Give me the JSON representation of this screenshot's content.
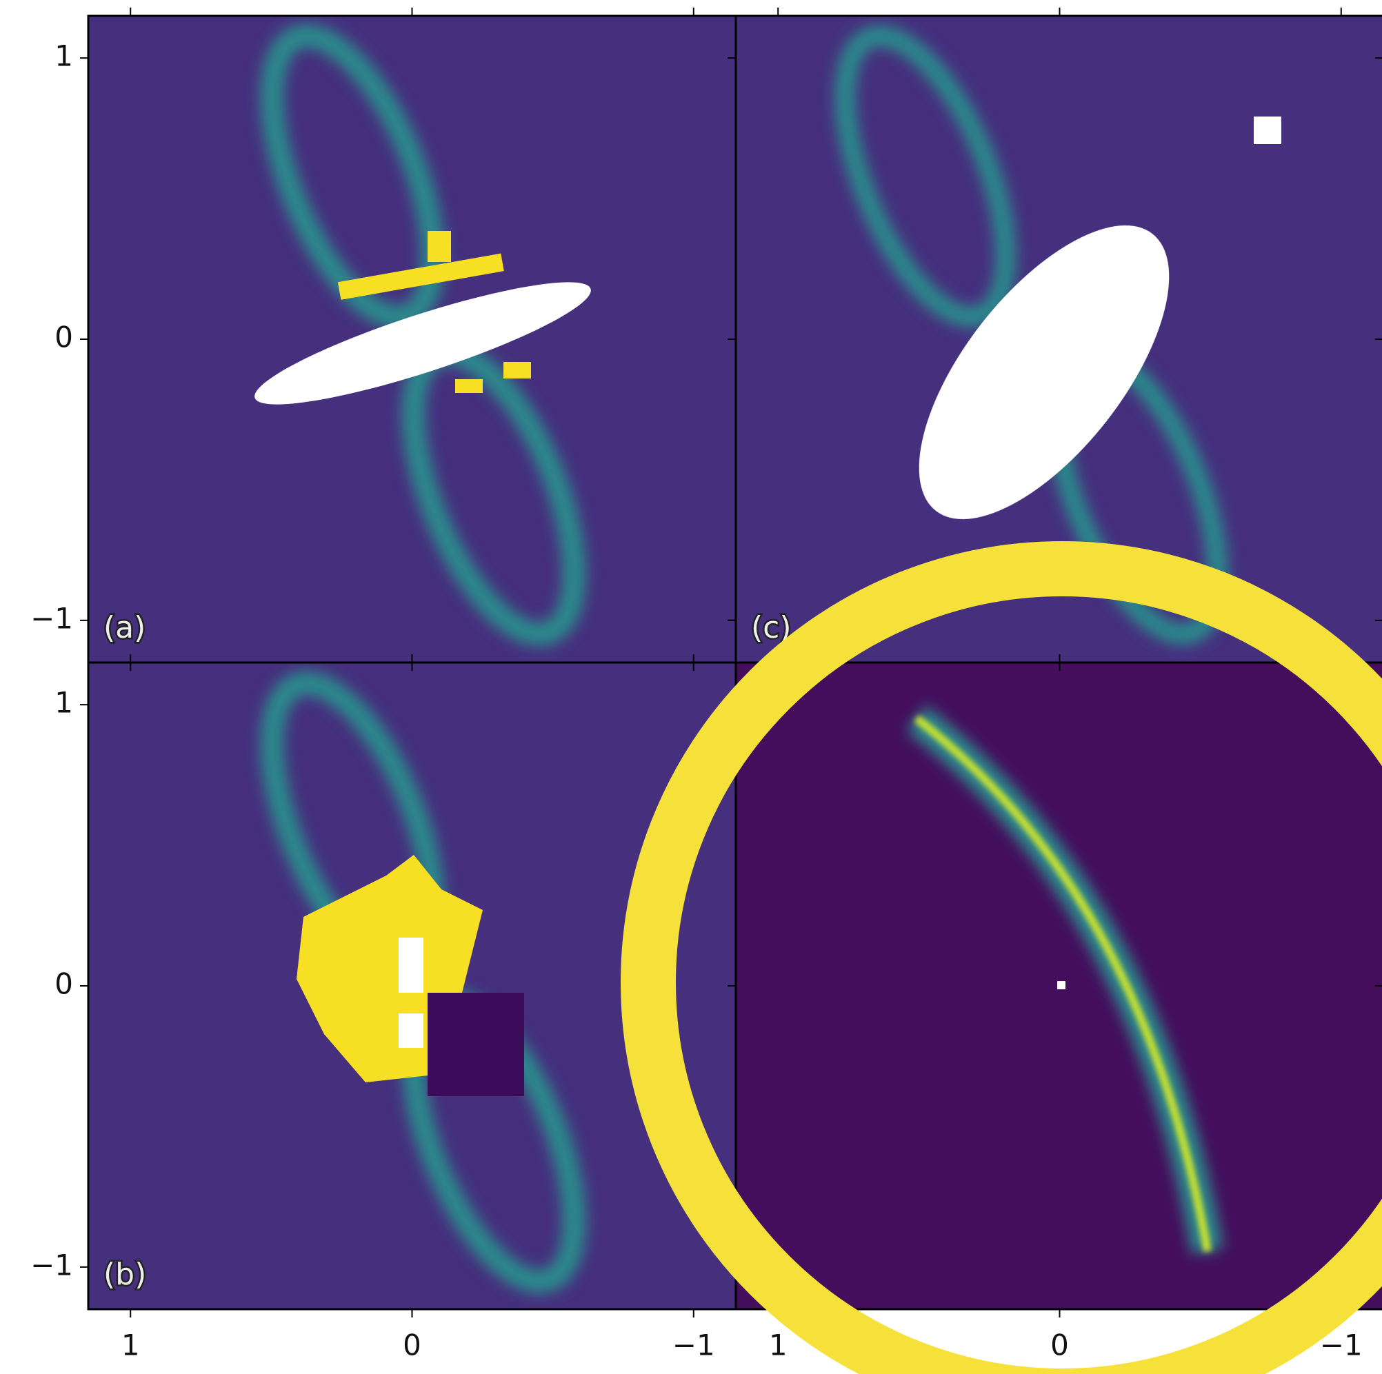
{
  "chart_data": [
    {
      "type": "image",
      "label": "(a)",
      "xlim": [
        1.15,
        -1.15
      ],
      "ylim": [
        -1.15,
        1.15
      ],
      "xticks": [
        1,
        0,
        {
          "value": -1,
          "label": "−1"
        }
      ],
      "yticks": [
        1,
        0,
        {
          "value": -1,
          "label": "−1"
        }
      ]
    },
    {
      "type": "image",
      "label": "(b)",
      "xlim": [
        1.15,
        -1.15
      ],
      "ylim": [
        -1.15,
        1.15
      ],
      "xticks": [
        1,
        0,
        {
          "value": -1,
          "label": "−1"
        }
      ],
      "yticks": [
        1,
        0,
        {
          "value": -1,
          "label": "−1"
        }
      ]
    },
    {
      "type": "image",
      "label": "(c)",
      "xlim": [
        1.15,
        -1.15
      ],
      "ylim": [
        -1.15,
        1.15
      ],
      "xticks": [
        1,
        0,
        {
          "value": -1,
          "label": "−1"
        }
      ],
      "yticks": [
        1,
        0,
        {
          "value": -1,
          "label": "−1"
        }
      ]
    },
    {
      "type": "image",
      "xlim": [
        1.15,
        -1.15
      ],
      "ylim": [
        -1.15,
        1.15
      ],
      "xticks": [
        1,
        0,
        {
          "value": -1,
          "label": "−1"
        }
      ],
      "yticks": [
        1,
        0,
        {
          "value": -1,
          "label": "−1"
        }
      ]
    }
  ]
}
